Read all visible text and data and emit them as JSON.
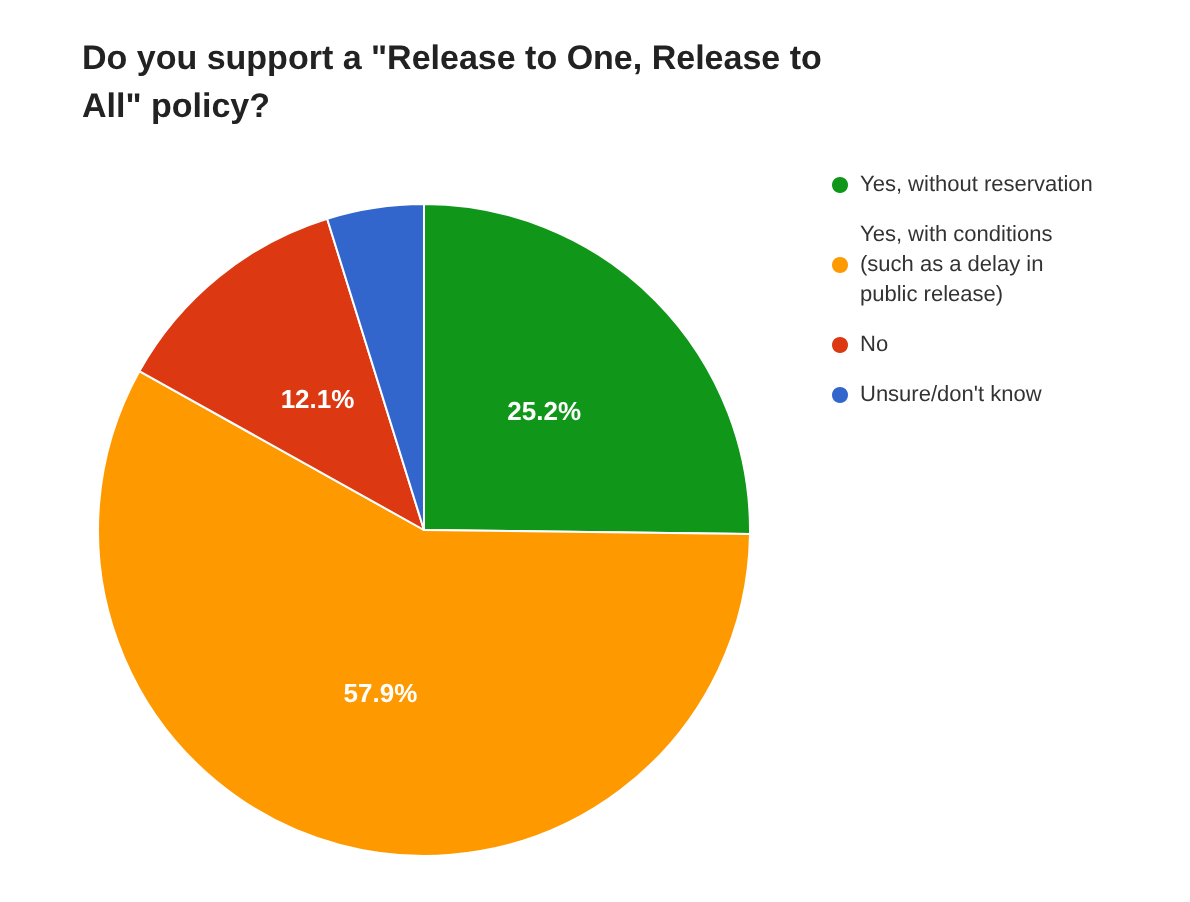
{
  "chart_data": {
    "type": "pie",
    "title": "Do you support a \"Release to One, Release to All\" policy?",
    "categories": [
      "Yes, without reservation",
      "Yes, with conditions (such as a delay in public release)",
      "No",
      "Unsure/don't know"
    ],
    "values": [
      25.2,
      57.9,
      12.1,
      4.8
    ],
    "colors": [
      "#109618",
      "#ff9900",
      "#dc3912",
      "#3366cc"
    ],
    "value_labels": [
      "25.2%",
      "57.9%",
      "12.1%",
      null
    ],
    "legend": "right"
  }
}
